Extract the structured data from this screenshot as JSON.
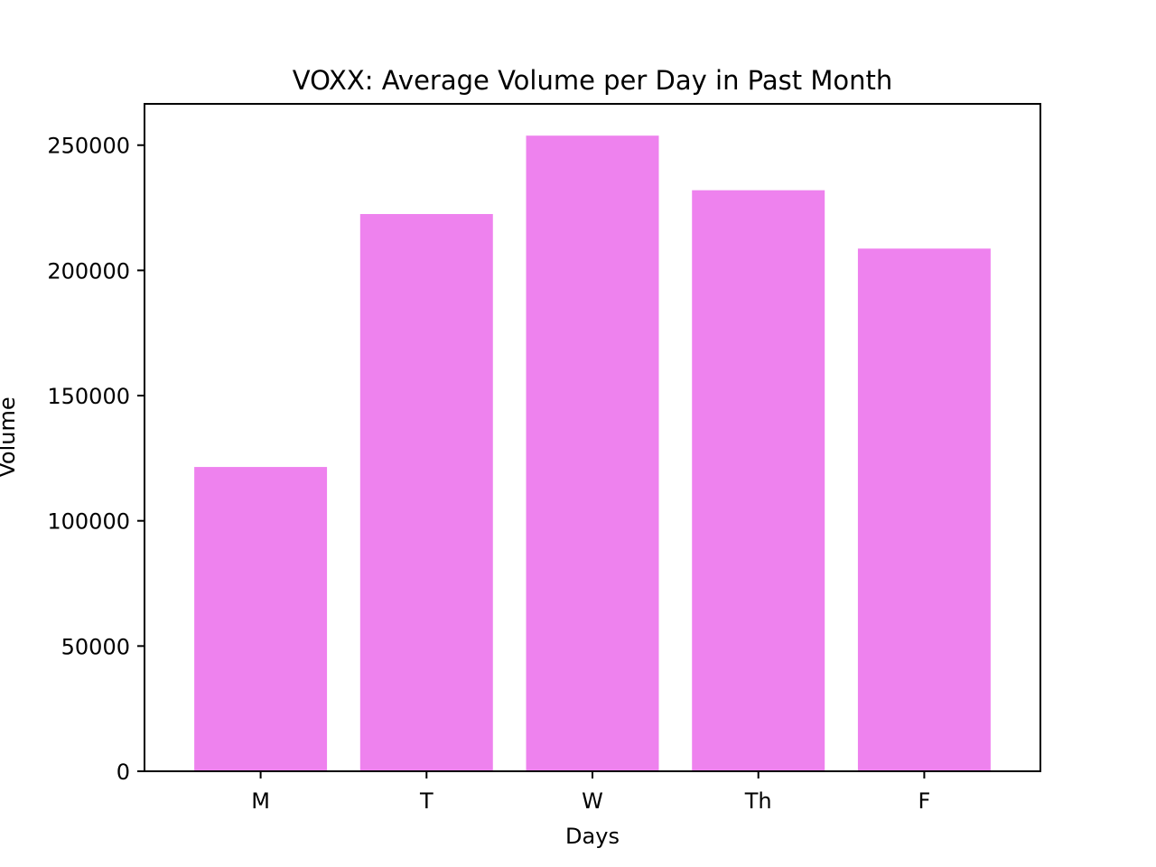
{
  "chart_data": {
    "type": "bar",
    "title": "VOXX: Average Volume per Day in Past Month",
    "xlabel": "Days",
    "ylabel": "Volume",
    "categories": [
      "M",
      "T",
      "W",
      "Th",
      "F"
    ],
    "values": [
      121500,
      222500,
      253800,
      232000,
      208700
    ],
    "ylim": [
      0,
      266490
    ],
    "yticks": [
      0,
      50000,
      100000,
      150000,
      200000,
      250000
    ],
    "ytick_labels": [
      "0",
      "50000",
      "100000",
      "150000",
      "200000",
      "250000"
    ],
    "grid": false,
    "legend": "none",
    "colors": {
      "bar": "#ee82ee",
      "axes": "#000000",
      "background": "#ffffff"
    }
  }
}
